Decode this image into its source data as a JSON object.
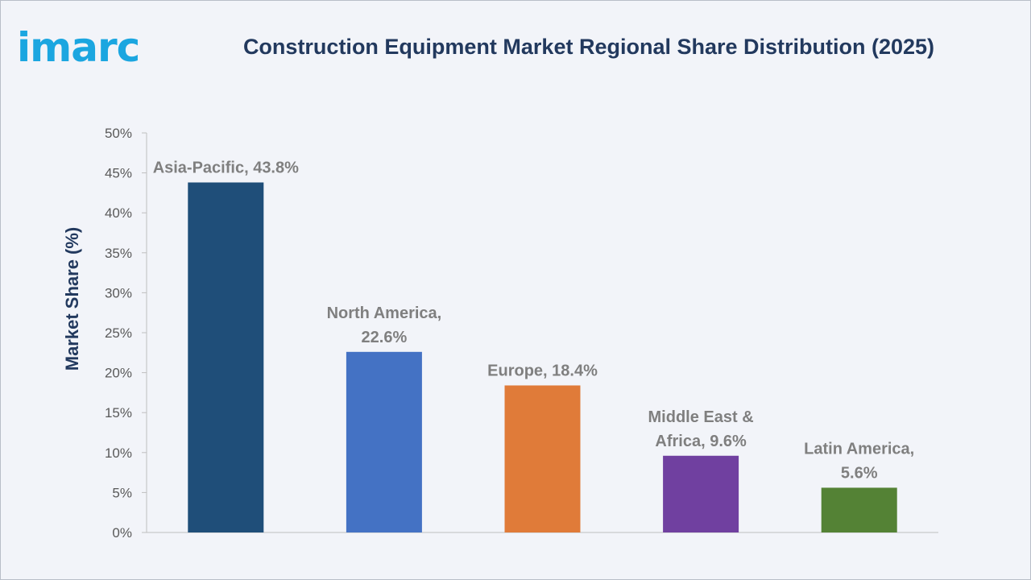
{
  "logo": {
    "text": "imarc",
    "color": "#1ba6e0"
  },
  "chart_data": {
    "type": "bar",
    "title": "Construction Equipment Market Regional Share Distribution (2025)",
    "xlabel": "",
    "ylabel": "Market Share (%)",
    "ylim": [
      0,
      50
    ],
    "y_ticks": [
      0,
      5,
      10,
      15,
      20,
      25,
      30,
      35,
      40,
      45,
      50
    ],
    "y_tick_suffix": "%",
    "grid": false,
    "legend": "none",
    "categories": [
      "Asia-Pacific",
      "North America",
      "Europe",
      "Middle East & Africa",
      "Latin America"
    ],
    "values": [
      43.8,
      22.6,
      18.4,
      9.6,
      5.6
    ],
    "data_labels": [
      [
        "Asia-Pacific, 43.8%"
      ],
      [
        "North America,",
        "22.6%"
      ],
      [
        "Europe, 18.4%"
      ],
      [
        "Middle East &",
        "Africa, 9.6%"
      ],
      [
        "Latin America,",
        "5.6%"
      ]
    ],
    "colors": [
      "#1f4e79",
      "#4472c4",
      "#e07b39",
      "#7040a0",
      "#548235"
    ]
  }
}
